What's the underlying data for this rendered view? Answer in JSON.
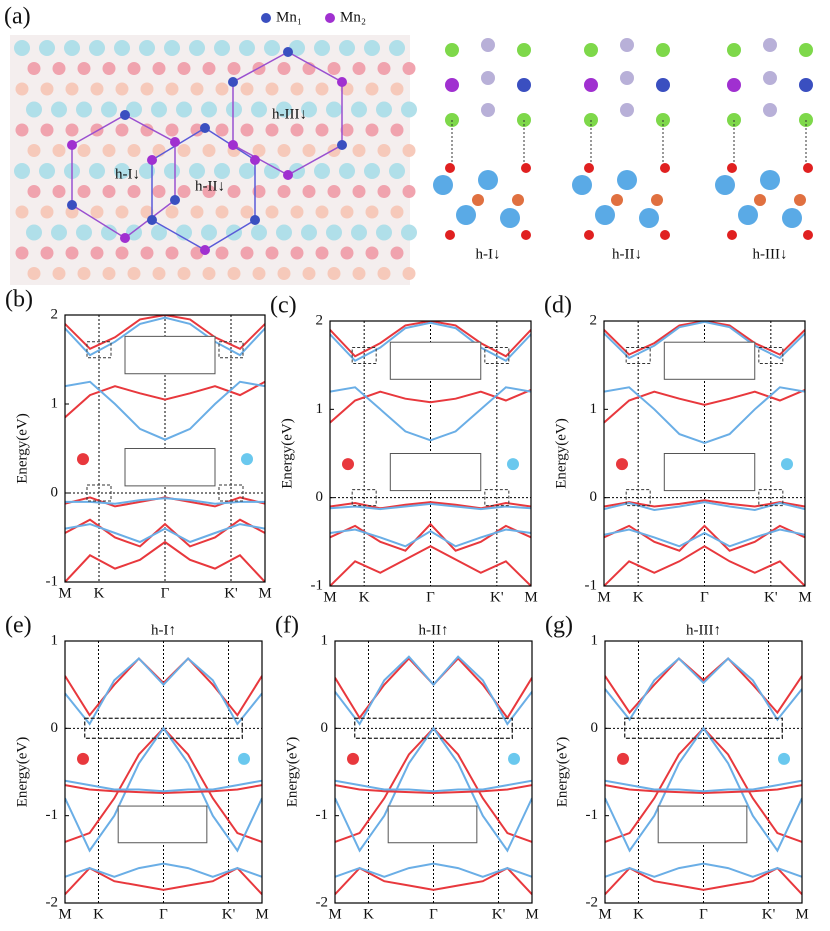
{
  "structure": {
    "label": "(a)",
    "legend": [
      "Mn₁",
      "Mn₂"
    ],
    "lattice_labels": [
      "h-I↓",
      "h-II↓",
      "h-III↓"
    ],
    "structure_labels": [
      "h-I↓",
      "h-II↓",
      "h-III↓"
    ]
  },
  "chart_data": [
    {
      "type": "line",
      "label": "(b)",
      "y_label": "Energy(eV)",
      "x": [
        0,
        0.125,
        0.25,
        0.375,
        0.5,
        0.625,
        0.75,
        0.875,
        1
      ],
      "xlim": [
        0,
        1
      ],
      "xticks": [
        {
          "value": 0,
          "label": "M"
        },
        {
          "value": 0.17,
          "label": "K"
        },
        {
          "value": 0.5,
          "label": "Γ"
        },
        {
          "value": 0.83,
          "label": "K'"
        },
        {
          "value": 1,
          "label": "M"
        }
      ],
      "ylim": [
        -1,
        2
      ],
      "yticks": [
        -1,
        0,
        1,
        2
      ],
      "series": [
        {
          "color": "#e8383d",
          "values": [
            1.9,
            1.62,
            1.75,
            1.95,
            2.0,
            1.95,
            1.75,
            1.62,
            1.9
          ]
        },
        {
          "color": "#6aaee6",
          "values": [
            1.85,
            1.55,
            1.7,
            1.9,
            1.97,
            1.9,
            1.7,
            1.55,
            1.85
          ]
        },
        {
          "color": "#e8383d",
          "values": [
            0.85,
            1.1,
            1.2,
            1.12,
            1.05,
            1.12,
            1.2,
            1.1,
            1.25
          ]
        },
        {
          "color": "#6aaee6",
          "values": [
            1.2,
            1.25,
            1.0,
            0.72,
            0.6,
            0.72,
            1.0,
            1.25,
            1.2
          ]
        },
        {
          "color": "#e8383d",
          "values": [
            -0.12,
            -0.05,
            -0.15,
            -0.1,
            -0.05,
            -0.1,
            -0.15,
            -0.05,
            -0.12
          ]
        },
        {
          "color": "#6aaee6",
          "values": [
            -0.1,
            -0.1,
            -0.12,
            -0.08,
            -0.06,
            -0.08,
            -0.12,
            -0.1,
            -0.1
          ]
        },
        {
          "color": "#e8383d",
          "values": [
            -0.45,
            -0.3,
            -0.5,
            -0.6,
            -0.35,
            -0.6,
            -0.5,
            -0.3,
            -0.45
          ]
        },
        {
          "color": "#6aaee6",
          "values": [
            -0.4,
            -0.35,
            -0.45,
            -0.55,
            -0.4,
            -0.55,
            -0.45,
            -0.35,
            -0.4
          ]
        },
        {
          "color": "#e8383d",
          "values": [
            -1,
            -0.7,
            -0.85,
            -0.75,
            -0.55,
            -0.75,
            -0.85,
            -0.7,
            -1
          ]
        }
      ]
    },
    {
      "type": "line",
      "label": "(c)",
      "y_label": "Energy(eV)",
      "x": [
        0,
        0.125,
        0.25,
        0.375,
        0.5,
        0.625,
        0.75,
        0.875,
        1
      ],
      "xlim": [
        0,
        1
      ],
      "xticks": [
        {
          "value": 0,
          "label": "M"
        },
        {
          "value": 0.17,
          "label": "K"
        },
        {
          "value": 0.5,
          "label": "Γ"
        },
        {
          "value": 0.83,
          "label": "K'"
        },
        {
          "value": 1,
          "label": "M"
        }
      ],
      "ylim": [
        -1,
        2
      ],
      "yticks": [
        -1,
        0,
        1,
        2
      ],
      "series": [
        {
          "color": "#e8383d",
          "values": [
            1.9,
            1.6,
            1.75,
            1.95,
            2.0,
            1.95,
            1.75,
            1.6,
            1.9
          ]
        },
        {
          "color": "#6aaee6",
          "values": [
            1.85,
            1.55,
            1.7,
            1.92,
            1.98,
            1.92,
            1.7,
            1.55,
            1.85
          ]
        },
        {
          "color": "#e8383d",
          "values": [
            0.85,
            1.1,
            1.2,
            1.12,
            1.08,
            1.12,
            1.2,
            1.1,
            1.22
          ]
        },
        {
          "color": "#6aaee6",
          "values": [
            1.2,
            1.25,
            1.0,
            0.75,
            0.65,
            0.75,
            1.0,
            1.25,
            1.2
          ]
        },
        {
          "color": "#e8383d",
          "values": [
            -0.1,
            -0.06,
            -0.12,
            -0.08,
            -0.05,
            -0.08,
            -0.12,
            -0.06,
            -0.1
          ]
        },
        {
          "color": "#6aaee6",
          "values": [
            -0.12,
            -0.1,
            -0.13,
            -0.1,
            -0.07,
            -0.1,
            -0.13,
            -0.1,
            -0.12
          ]
        },
        {
          "color": "#e8383d",
          "values": [
            -0.45,
            -0.32,
            -0.5,
            -0.6,
            -0.3,
            -0.6,
            -0.5,
            -0.32,
            -0.45
          ]
        },
        {
          "color": "#6aaee6",
          "values": [
            -0.4,
            -0.36,
            -0.45,
            -0.55,
            -0.38,
            -0.55,
            -0.45,
            -0.36,
            -0.4
          ]
        },
        {
          "color": "#e8383d",
          "values": [
            -1,
            -0.72,
            -0.85,
            -0.7,
            -0.55,
            -0.7,
            -0.85,
            -0.72,
            -1
          ]
        }
      ]
    },
    {
      "type": "line",
      "label": "(d)",
      "y_label": "Energy(eV)",
      "x": [
        0,
        0.125,
        0.25,
        0.375,
        0.5,
        0.625,
        0.75,
        0.875,
        1
      ],
      "xlim": [
        0,
        1
      ],
      "xticks": [
        {
          "value": 0,
          "label": "M"
        },
        {
          "value": 0.17,
          "label": "K"
        },
        {
          "value": 0.5,
          "label": "Γ"
        },
        {
          "value": 0.83,
          "label": "K'"
        },
        {
          "value": 1,
          "label": "M"
        }
      ],
      "ylim": [
        -1,
        2
      ],
      "yticks": [
        -1,
        0,
        1,
        2
      ],
      "series": [
        {
          "color": "#e8383d",
          "values": [
            1.9,
            1.62,
            1.75,
            1.95,
            2.0,
            1.95,
            1.75,
            1.62,
            1.9
          ]
        },
        {
          "color": "#6aaee6",
          "values": [
            1.86,
            1.58,
            1.72,
            1.93,
            1.99,
            1.93,
            1.72,
            1.58,
            1.86
          ]
        },
        {
          "color": "#e8383d",
          "values": [
            0.85,
            1.1,
            1.2,
            1.12,
            1.05,
            1.12,
            1.2,
            1.1,
            1.22
          ]
        },
        {
          "color": "#6aaee6",
          "values": [
            1.2,
            1.25,
            1.0,
            0.72,
            0.62,
            0.72,
            1.0,
            1.25,
            1.2
          ]
        },
        {
          "color": "#e8383d",
          "values": [
            -0.1,
            -0.05,
            -0.1,
            -0.07,
            -0.03,
            -0.07,
            -0.1,
            -0.05,
            -0.1
          ]
        },
        {
          "color": "#6aaee6",
          "values": [
            -0.13,
            -0.06,
            -0.14,
            -0.1,
            -0.05,
            -0.1,
            -0.14,
            -0.06,
            -0.13
          ]
        },
        {
          "color": "#e8383d",
          "values": [
            -0.45,
            -0.32,
            -0.5,
            -0.6,
            -0.32,
            -0.6,
            -0.5,
            -0.32,
            -0.45
          ]
        },
        {
          "color": "#6aaee6",
          "values": [
            -0.42,
            -0.36,
            -0.45,
            -0.55,
            -0.4,
            -0.55,
            -0.45,
            -0.36,
            -0.42
          ]
        },
        {
          "color": "#e8383d",
          "values": [
            -1,
            -0.72,
            -0.85,
            -0.72,
            -0.55,
            -0.72,
            -0.85,
            -0.72,
            -1
          ]
        }
      ]
    },
    {
      "type": "line",
      "label": "(e)",
      "title": "h-I↑",
      "y_label": "Energy(eV)",
      "x": [
        0,
        0.125,
        0.25,
        0.375,
        0.5,
        0.625,
        0.75,
        0.875,
        1
      ],
      "xlim": [
        0,
        1
      ],
      "xticks": [
        {
          "value": 0,
          "label": "M"
        },
        {
          "value": 0.17,
          "label": "K"
        },
        {
          "value": 0.5,
          "label": "Γ"
        },
        {
          "value": 0.83,
          "label": "K'"
        },
        {
          "value": 1,
          "label": "M"
        }
      ],
      "ylim": [
        -2,
        1
      ],
      "yticks": [
        -2,
        -1,
        0,
        1
      ],
      "series": [
        {
          "color": "#e8383d",
          "values": [
            0.6,
            0.15,
            0.5,
            0.8,
            0.52,
            0.8,
            0.5,
            0.15,
            0.6
          ]
        },
        {
          "color": "#6aaee6",
          "values": [
            0.4,
            0.05,
            0.55,
            0.8,
            0.5,
            0.8,
            0.55,
            0.05,
            0.4
          ]
        },
        {
          "color": "#e8383d",
          "values": [
            -1.3,
            -1.2,
            -0.8,
            -0.3,
            0,
            -0.3,
            -0.8,
            -1.2,
            -1.3
          ]
        },
        {
          "color": "#6aaee6",
          "values": [
            -0.8,
            -1.4,
            -1.0,
            -0.4,
            0,
            -0.4,
            -1.0,
            -1.4,
            -0.8
          ]
        },
        {
          "color": "#e8383d",
          "values": [
            -0.65,
            -0.7,
            -0.72,
            -0.73,
            -0.74,
            -0.73,
            -0.72,
            -0.7,
            -0.65
          ]
        },
        {
          "color": "#6aaee6",
          "values": [
            -0.6,
            -0.65,
            -0.7,
            -0.7,
            -0.72,
            -0.7,
            -0.7,
            -0.65,
            -0.6
          ]
        },
        {
          "color": "#e8383d",
          "values": [
            -1.9,
            -1.6,
            -1.75,
            -1.8,
            -1.85,
            -1.8,
            -1.75,
            -1.6,
            -1.9
          ]
        },
        {
          "color": "#6aaee6",
          "values": [
            -1.7,
            -1.6,
            -1.7,
            -1.6,
            -1.55,
            -1.6,
            -1.7,
            -1.6,
            -1.7
          ]
        }
      ]
    },
    {
      "type": "line",
      "label": "(f)",
      "title": "h-II↑",
      "y_label": "Energy(eV)",
      "x": [
        0,
        0.125,
        0.25,
        0.375,
        0.5,
        0.625,
        0.75,
        0.875,
        1
      ],
      "xlim": [
        0,
        1
      ],
      "xticks": [
        {
          "value": 0,
          "label": "M"
        },
        {
          "value": 0.17,
          "label": "K"
        },
        {
          "value": 0.5,
          "label": "Γ"
        },
        {
          "value": 0.83,
          "label": "K'"
        },
        {
          "value": 1,
          "label": "M"
        }
      ],
      "ylim": [
        -2,
        1
      ],
      "yticks": [
        -2,
        -1,
        0,
        1
      ],
      "series": [
        {
          "color": "#e8383d",
          "values": [
            0.58,
            0.12,
            0.5,
            0.8,
            0.5,
            0.8,
            0.5,
            0.12,
            0.58
          ]
        },
        {
          "color": "#6aaee6",
          "values": [
            0.42,
            0.05,
            0.55,
            0.82,
            0.5,
            0.82,
            0.55,
            0.05,
            0.42
          ]
        },
        {
          "color": "#e8383d",
          "values": [
            -1.3,
            -1.2,
            -0.8,
            -0.3,
            0,
            -0.3,
            -0.8,
            -1.2,
            -1.3
          ]
        },
        {
          "color": "#6aaee6",
          "values": [
            -0.8,
            -1.4,
            -1.0,
            -0.4,
            0,
            -0.4,
            -1.0,
            -1.4,
            -0.8
          ]
        },
        {
          "color": "#e8383d",
          "values": [
            -0.65,
            -0.7,
            -0.72,
            -0.73,
            -0.74,
            -0.73,
            -0.72,
            -0.7,
            -0.65
          ]
        },
        {
          "color": "#6aaee6",
          "values": [
            -0.6,
            -0.65,
            -0.7,
            -0.7,
            -0.72,
            -0.7,
            -0.7,
            -0.65,
            -0.6
          ]
        },
        {
          "color": "#e8383d",
          "values": [
            -1.9,
            -1.6,
            -1.75,
            -1.8,
            -1.85,
            -1.8,
            -1.75,
            -1.6,
            -1.9
          ]
        },
        {
          "color": "#6aaee6",
          "values": [
            -1.7,
            -1.6,
            -1.7,
            -1.6,
            -1.55,
            -1.6,
            -1.7,
            -1.6,
            -1.7
          ]
        }
      ]
    },
    {
      "type": "line",
      "label": "(g)",
      "title": "h-III↑",
      "y_label": "Energy(eV)",
      "x": [
        0,
        0.125,
        0.25,
        0.375,
        0.5,
        0.625,
        0.75,
        0.875,
        1
      ],
      "xlim": [
        0,
        1
      ],
      "xticks": [
        {
          "value": 0,
          "label": "M"
        },
        {
          "value": 0.17,
          "label": "K"
        },
        {
          "value": 0.5,
          "label": "Γ"
        },
        {
          "value": 0.83,
          "label": "K'"
        },
        {
          "value": 1,
          "label": "M"
        }
      ],
      "ylim": [
        -2,
        1
      ],
      "yticks": [
        -2,
        -1,
        0,
        1
      ],
      "series": [
        {
          "color": "#e8383d",
          "values": [
            0.6,
            0.18,
            0.5,
            0.8,
            0.55,
            0.8,
            0.5,
            0.18,
            0.6
          ]
        },
        {
          "color": "#6aaee6",
          "values": [
            0.45,
            0.1,
            0.55,
            0.8,
            0.52,
            0.8,
            0.55,
            0.1,
            0.45
          ]
        },
        {
          "color": "#e8383d",
          "values": [
            -1.3,
            -1.2,
            -0.8,
            -0.3,
            0,
            -0.3,
            -0.8,
            -1.2,
            -1.3
          ]
        },
        {
          "color": "#6aaee6",
          "values": [
            -0.8,
            -1.4,
            -1.0,
            -0.4,
            0,
            -0.4,
            -1.0,
            -1.4,
            -0.8
          ]
        },
        {
          "color": "#e8383d",
          "values": [
            -0.65,
            -0.7,
            -0.72,
            -0.73,
            -0.74,
            -0.73,
            -0.72,
            -0.7,
            -0.65
          ]
        },
        {
          "color": "#6aaee6",
          "values": [
            -0.6,
            -0.65,
            -0.7,
            -0.7,
            -0.72,
            -0.7,
            -0.7,
            -0.65,
            -0.6
          ]
        },
        {
          "color": "#e8383d",
          "values": [
            -1.9,
            -1.6,
            -1.75,
            -1.8,
            -1.85,
            -1.8,
            -1.75,
            -1.6,
            -1.9
          ]
        },
        {
          "color": "#6aaee6",
          "values": [
            -1.7,
            -1.6,
            -1.7,
            -1.6,
            -1.55,
            -1.6,
            -1.7,
            -1.6,
            -1.7
          ]
        }
      ]
    }
  ]
}
